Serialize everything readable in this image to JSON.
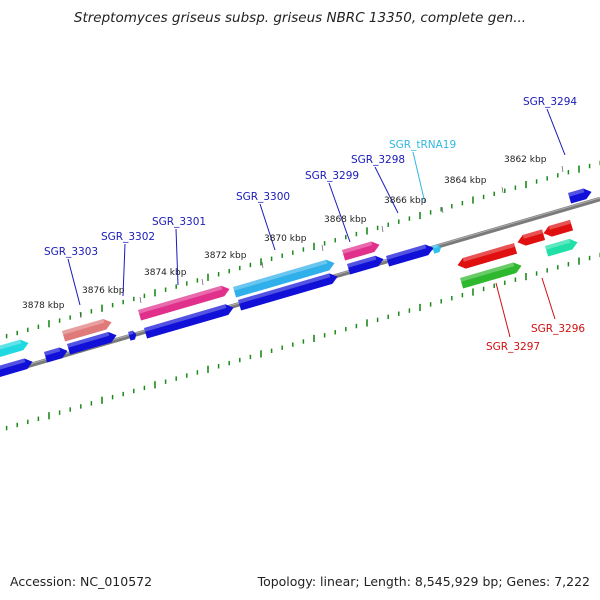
{
  "title": "Streptomyces griseus subsp. griseus NBRC 13350, complete gen...",
  "footer": {
    "accession": "Accession: NC_010572",
    "summary": "Topology: linear; Length: 8,545,929 bp; Genes: 7,222"
  },
  "colors": {
    "axis": "#808080",
    "tick": "#1b8a1b",
    "forward_label": "#1a1ab8",
    "reverse_label": "#d01010",
    "trna_label": "#30b8e0"
  },
  "ticks": [
    {
      "pos": 3878,
      "label": "3878 kbp"
    },
    {
      "pos": 3876,
      "label": "3876 kbp"
    },
    {
      "pos": 3874,
      "label": "3874 kbp"
    },
    {
      "pos": 3872,
      "label": "3872 kbp"
    },
    {
      "pos": 3870,
      "label": "3870 kbp"
    },
    {
      "pos": 3868,
      "label": "3868 kbp"
    },
    {
      "pos": 3866,
      "label": "3866 kbp"
    },
    {
      "pos": 3864,
      "label": "3864 kbp"
    },
    {
      "pos": 3862,
      "label": "3862 kbp"
    }
  ],
  "gene_labels": [
    {
      "text": "SGR_3303",
      "kind": "forward"
    },
    {
      "text": "SGR_3302",
      "kind": "forward"
    },
    {
      "text": "SGR_3301",
      "kind": "forward"
    },
    {
      "text": "SGR_3300",
      "kind": "forward"
    },
    {
      "text": "SGR_3299",
      "kind": "forward"
    },
    {
      "text": "SGR_3298",
      "kind": "forward"
    },
    {
      "text": "SGR_tRNA19",
      "kind": "trna"
    },
    {
      "text": "SGR_3294",
      "kind": "forward"
    },
    {
      "text": "SGR_3297",
      "kind": "reverse"
    },
    {
      "text": "SGR_3296",
      "kind": "reverse"
    }
  ]
}
